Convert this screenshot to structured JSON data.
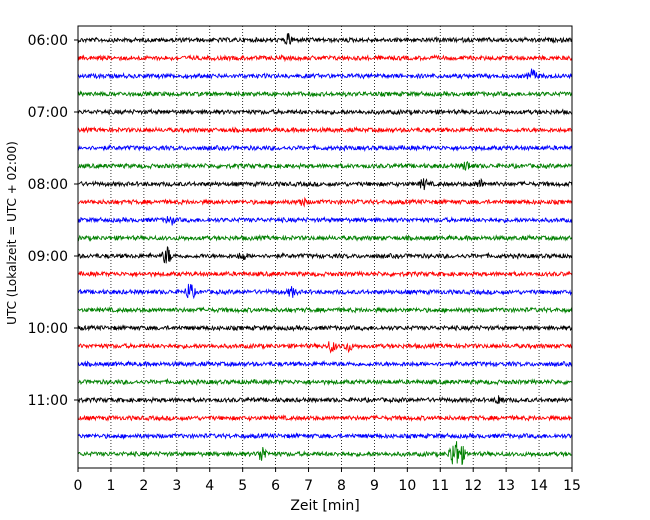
{
  "chart_data": {
    "type": "line",
    "xlabel": "Zeit  [min]",
    "ylabel": "UTC (Lokalzeit = UTC + 02:00)",
    "xlim": [
      0,
      15
    ],
    "x_ticks": [
      0,
      1,
      2,
      3,
      4,
      5,
      6,
      7,
      8,
      9,
      10,
      11,
      12,
      13,
      14,
      15
    ],
    "y_tick_labels": [
      "06:00",
      "07:00",
      "08:00",
      "09:00",
      "10:00",
      "11:00"
    ],
    "vertical_grid": "dotted",
    "trace_interval_minutes": 15,
    "first_trace": "06:00",
    "colors_cycle": [
      "#000000",
      "#ff0000",
      "#0000ff",
      "#008000"
    ],
    "series": [
      {
        "start": "06:00",
        "color": "#000000",
        "events": [
          {
            "x": 6.4,
            "amp": 1.4
          }
        ]
      },
      {
        "start": "06:15",
        "color": "#ff0000",
        "events": []
      },
      {
        "start": "06:30",
        "color": "#0000ff",
        "events": [
          {
            "x": 13.8,
            "amp": 1.8
          }
        ]
      },
      {
        "start": "06:45",
        "color": "#008000",
        "events": []
      },
      {
        "start": "07:00",
        "color": "#000000",
        "events": []
      },
      {
        "start": "07:15",
        "color": "#ff0000",
        "events": []
      },
      {
        "start": "07:30",
        "color": "#0000ff",
        "events": []
      },
      {
        "start": "07:45",
        "color": "#008000",
        "events": [
          {
            "x": 11.8,
            "amp": 1.2
          }
        ]
      },
      {
        "start": "08:00",
        "color": "#000000",
        "events": [
          {
            "x": 10.5,
            "amp": 1.3
          },
          {
            "x": 12.2,
            "amp": 1.0
          }
        ]
      },
      {
        "start": "08:15",
        "color": "#ff0000",
        "events": [
          {
            "x": 6.8,
            "amp": 1.0
          }
        ]
      },
      {
        "start": "08:30",
        "color": "#0000ff",
        "events": [
          {
            "x": 2.8,
            "amp": 1.2
          }
        ]
      },
      {
        "start": "08:45",
        "color": "#008000",
        "events": []
      },
      {
        "start": "09:00",
        "color": "#000000",
        "events": [
          {
            "x": 2.7,
            "amp": 2.5
          },
          {
            "x": 5.0,
            "amp": 1.0
          }
        ]
      },
      {
        "start": "09:15",
        "color": "#ff0000",
        "events": []
      },
      {
        "start": "09:30",
        "color": "#0000ff",
        "events": [
          {
            "x": 3.4,
            "amp": 2.4
          },
          {
            "x": 6.5,
            "amp": 1.2
          }
        ]
      },
      {
        "start": "09:45",
        "color": "#008000",
        "events": []
      },
      {
        "start": "10:00",
        "color": "#000000",
        "events": []
      },
      {
        "start": "10:15",
        "color": "#ff0000",
        "events": [
          {
            "x": 7.7,
            "amp": 1.5
          },
          {
            "x": 8.2,
            "amp": 1.2
          }
        ]
      },
      {
        "start": "10:30",
        "color": "#0000ff",
        "events": []
      },
      {
        "start": "10:45",
        "color": "#008000",
        "events": []
      },
      {
        "start": "11:00",
        "color": "#000000",
        "events": [
          {
            "x": 12.8,
            "amp": 1.2
          }
        ]
      },
      {
        "start": "11:15",
        "color": "#ff0000",
        "events": []
      },
      {
        "start": "11:30",
        "color": "#0000ff",
        "events": []
      },
      {
        "start": "11:45",
        "color": "#008000",
        "events": [
          {
            "x": 5.6,
            "amp": 2.2
          },
          {
            "x": 11.4,
            "amp": 3.5
          },
          {
            "x": 11.6,
            "amp": 3.5
          }
        ]
      }
    ]
  }
}
